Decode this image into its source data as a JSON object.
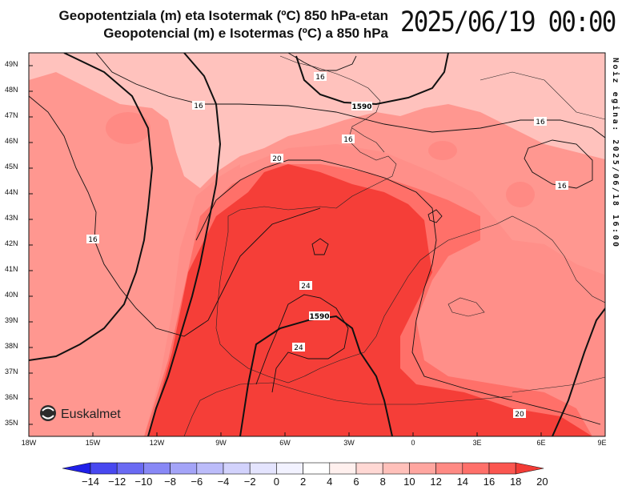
{
  "title": {
    "line1": "Geopotentziala (m) eta Isotermak (ºC) 850 hPa-etan",
    "line2": "Geopotencial (m) e Isotermas (ºC) a 850 hPa"
  },
  "valid_time": "2025/06/19 00:00",
  "run_note": "Noiz egina: 2025/06/18 16:00",
  "logo_text": "Euskalmet",
  "map": {
    "lat_labels": [
      "49N",
      "48N",
      "47N",
      "46N",
      "45N",
      "44N",
      "43N",
      "42N",
      "41N",
      "40N",
      "39N",
      "38N",
      "37N",
      "36N",
      "35N"
    ],
    "lon_labels": [
      "18W",
      "15W",
      "12W",
      "9W",
      "6W",
      "3W",
      "0",
      "3E",
      "6E",
      "9E"
    ],
    "isotherm_labels": [
      "16",
      "16",
      "16",
      "16",
      "16",
      "16",
      "20",
      "24",
      "24",
      "20"
    ],
    "geopotential_labels": [
      "1590",
      "1590"
    ]
  },
  "colorbar": {
    "labels": [
      "−14",
      "−12",
      "−10",
      "−8",
      "−6",
      "−4",
      "−2",
      "0",
      "2",
      "4",
      "6",
      "8",
      "10",
      "12",
      "14",
      "16",
      "18",
      "20"
    ],
    "colors": [
      "#1f1fe8",
      "#4848f0",
      "#6a6af3",
      "#8888f6",
      "#a4a4f8",
      "#bcbcfa",
      "#d2d2fc",
      "#e4e4fe",
      "#f2f2ff",
      "#ffffff",
      "#fff0ee",
      "#ffd8d4",
      "#ffc0ba",
      "#ffa6a0",
      "#ff8a84",
      "#ff706a",
      "#fb5650",
      "#f23b35"
    ]
  },
  "legend": {
    "colors": [
      "#ffc2bd",
      "#ff8f89",
      "#ff7069",
      "#f53e38"
    ]
  }
}
